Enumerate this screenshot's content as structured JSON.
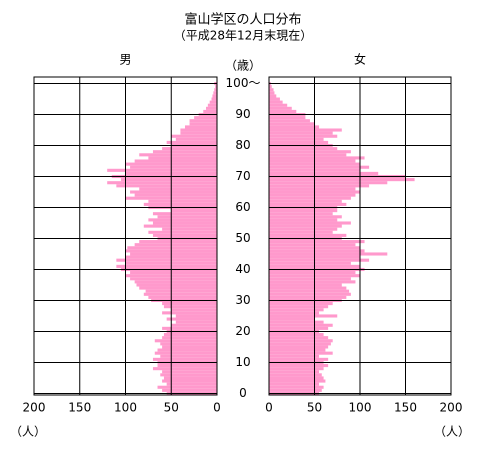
{
  "chart_data": {
    "type": "pyramid",
    "title": "富山学区の人口分布",
    "subtitle": "（平成28年12月末現在）",
    "x_label": "（歳）",
    "y_label": "（人）",
    "x": [
      0,
      1,
      2,
      3,
      4,
      5,
      6,
      7,
      8,
      9,
      10,
      11,
      12,
      13,
      14,
      15,
      16,
      17,
      18,
      19,
      20,
      21,
      22,
      23,
      24,
      25,
      26,
      27,
      28,
      29,
      30,
      31,
      32,
      33,
      34,
      35,
      36,
      37,
      38,
      39,
      40,
      41,
      42,
      43,
      44,
      45,
      46,
      47,
      48,
      49,
      50,
      51,
      52,
      53,
      54,
      55,
      56,
      57,
      58,
      59,
      60,
      61,
      62,
      63,
      64,
      65,
      66,
      67,
      68,
      69,
      70,
      71,
      72,
      73,
      74,
      75,
      76,
      77,
      78,
      79,
      80,
      81,
      82,
      83,
      84,
      85,
      86,
      87,
      88,
      89,
      90,
      91,
      92,
      93,
      94,
      95,
      96,
      97,
      98,
      99,
      100
    ],
    "xlim": [
      0,
      100
    ],
    "xticks": [
      0,
      10,
      20,
      30,
      40,
      50,
      60,
      70,
      80,
      90,
      {
        "value": 100,
        "label": "100～"
      }
    ],
    "ylim": [
      0,
      200
    ],
    "yticks": [
      0,
      50,
      100,
      150,
      200
    ],
    "grid": true,
    "series": [
      {
        "name": "男",
        "side": "left",
        "color": "#ff99cc",
        "values": [
          55,
          60,
          65,
          55,
          60,
          58,
          62,
          60,
          70,
          65,
          65,
          70,
          62,
          68,
          65,
          60,
          62,
          68,
          60,
          58,
          55,
          60,
          50,
          45,
          55,
          45,
          60,
          50,
          58,
          60,
          72,
          75,
          80,
          78,
          85,
          88,
          90,
          95,
          100,
          95,
          105,
          110,
          100,
          110,
          100,
          95,
          100,
          98,
          90,
          85,
          65,
          70,
          75,
          60,
          80,
          70,
          75,
          65,
          70,
          50,
          75,
          80,
          75,
          100,
          90,
          95,
          85,
          110,
          120,
          105,
          115,
          100,
          120,
          95,
          100,
          90,
          75,
          85,
          70,
          60,
          50,
          55,
          45,
          50,
          40,
          40,
          35,
          30,
          30,
          25,
          20,
          15,
          12,
          10,
          8,
          6,
          5,
          4,
          3,
          2,
          3
        ]
      },
      {
        "name": "女",
        "side": "right",
        "color": "#ff99cc",
        "values": [
          55,
          58,
          60,
          55,
          62,
          60,
          58,
          55,
          60,
          65,
          60,
          65,
          55,
          70,
          62,
          65,
          68,
          70,
          65,
          60,
          55,
          65,
          70,
          60,
          50,
          75,
          55,
          60,
          65,
          70,
          80,
          85,
          90,
          88,
          85,
          80,
          95,
          90,
          100,
          95,
          105,
          100,
          90,
          110,
          100,
          130,
          105,
          100,
          95,
          105,
          80,
          85,
          70,
          75,
          80,
          90,
          75,
          80,
          70,
          75,
          75,
          85,
          80,
          90,
          95,
          100,
          95,
          110,
          130,
          160,
          150,
          120,
          100,
          110,
          100,
          95,
          105,
          85,
          90,
          75,
          70,
          65,
          60,
          75,
          70,
          80,
          55,
          50,
          45,
          40,
          40,
          30,
          25,
          20,
          15,
          12,
          8,
          6,
          5,
          3,
          2
        ]
      }
    ]
  }
}
